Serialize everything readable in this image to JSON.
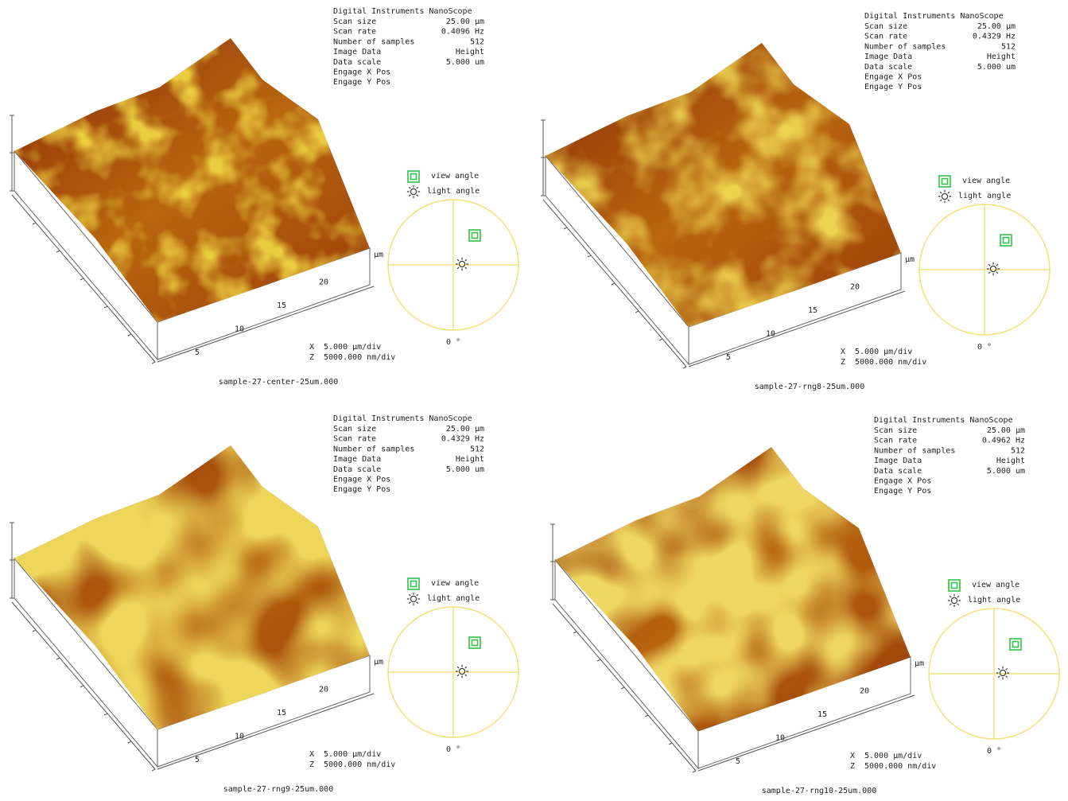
{
  "panels": [
    {
      "header": {
        "title": "Digital Instruments NanoScope",
        "rows": [
          [
            "Scan size",
            "25.00 µm"
          ],
          [
            "Scan rate",
            "0.4096 Hz"
          ],
          [
            "Number of samples",
            "512"
          ],
          [
            "Image Data",
            "Height"
          ],
          [
            "Data scale",
            "5.000 um"
          ],
          [
            "Engage X Pos"
          ],
          [
            "Engage Y Pos"
          ]
        ]
      },
      "axis": {
        "ticks": [
          5,
          10,
          15,
          20
        ],
        "unit": "µm"
      },
      "legend": {
        "view": "view angle",
        "light": "light angle"
      },
      "angle": "0 °",
      "scale": {
        "x_label": "X",
        "x": "5.000 µm/div",
        "z_label": "Z",
        "z": "5000.000 nm/div"
      },
      "caption": "sample-27-center-25um.000"
    },
    {
      "header": {
        "title": "Digital Instruments NanoScope",
        "rows": [
          [
            "Scan size",
            "25.00 µm"
          ],
          [
            "Scan rate",
            "0.4329 Hz"
          ],
          [
            "Number of samples",
            "512"
          ],
          [
            "Image Data",
            "Height"
          ],
          [
            "Data scale",
            "5.000 um"
          ],
          [
            "Engage X Pos"
          ],
          [
            "Engage Y Pos"
          ]
        ]
      },
      "axis": {
        "ticks": [
          5,
          10,
          15,
          20
        ],
        "unit": "µm"
      },
      "legend": {
        "view": "view angle",
        "light": "light angle"
      },
      "angle": "0 °",
      "scale": {
        "x_label": "X",
        "x": "5.000 µm/div",
        "z_label": "Z",
        "z": "5000.000 nm/div"
      },
      "caption": "sample-27-rng8-25um.000"
    },
    {
      "header": {
        "title": "Digital Instruments NanoScope",
        "rows": [
          [
            "Scan size",
            "25.00 µm"
          ],
          [
            "Scan rate",
            "0.4329 Hz"
          ],
          [
            "Number of samples",
            "512"
          ],
          [
            "Image Data",
            "Height"
          ],
          [
            "Data scale",
            "5.000 um"
          ],
          [
            "Engage X Pos"
          ],
          [
            "Engage Y Pos"
          ]
        ]
      },
      "axis": {
        "ticks": [
          5,
          10,
          15,
          20
        ],
        "unit": "µm"
      },
      "legend": {
        "view": "view angle",
        "light": "light angle"
      },
      "angle": "0 °",
      "scale": {
        "x_label": "X",
        "x": "5.000 µm/div",
        "z_label": "Z",
        "z": "5000.000 nm/div"
      },
      "caption": "sample-27-rng9-25um.000"
    },
    {
      "header": {
        "title": "Digital Instruments NanoScope",
        "rows": [
          [
            "Scan size",
            "25.00 µm"
          ],
          [
            "Scan rate",
            "0.4962 Hz"
          ],
          [
            "Number of samples",
            "512"
          ],
          [
            "Image Data",
            "Height"
          ],
          [
            "Data scale",
            "5.000 um"
          ],
          [
            "Engage X Pos"
          ],
          [
            "Engage Y Pos"
          ]
        ]
      },
      "axis": {
        "ticks": [
          5,
          10,
          15,
          20
        ],
        "unit": "µm"
      },
      "legend": {
        "view": "view angle",
        "light": "light angle"
      },
      "angle": "0 °",
      "scale": {
        "x_label": "X",
        "x": "5.000 µm/div",
        "z_label": "Z",
        "z": "5000.000 nm/div"
      },
      "caption": "sample-27-rng10-25um.000"
    }
  ]
}
